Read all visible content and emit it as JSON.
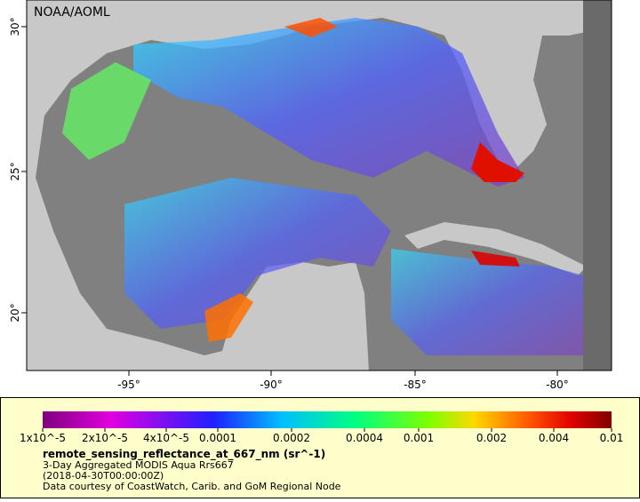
{
  "map": {
    "credit": "NOAA/AOML",
    "lon_labels": [
      "-95°",
      "-90°",
      "-85°",
      "-80°"
    ],
    "lat_labels": [
      "20°",
      "25°",
      "30°"
    ]
  },
  "legend": {
    "tick_labels": [
      "1x10^-5",
      "2x10^-5",
      "4x10^-5",
      "0.0001",
      "0.0002",
      "0.0004",
      "0.001",
      "0.002",
      "0.004",
      "0.01"
    ],
    "title": "remote_sensing_reflectance_at_667_nm (sr^-1)",
    "lines": [
      "3-Day Aggregated MODIS Aqua Rrs667",
      "(2018-04-30T00:00:00Z)",
      "Data courtesy of CoastWatch, Carib. and GoM Regional Node"
    ]
  }
}
